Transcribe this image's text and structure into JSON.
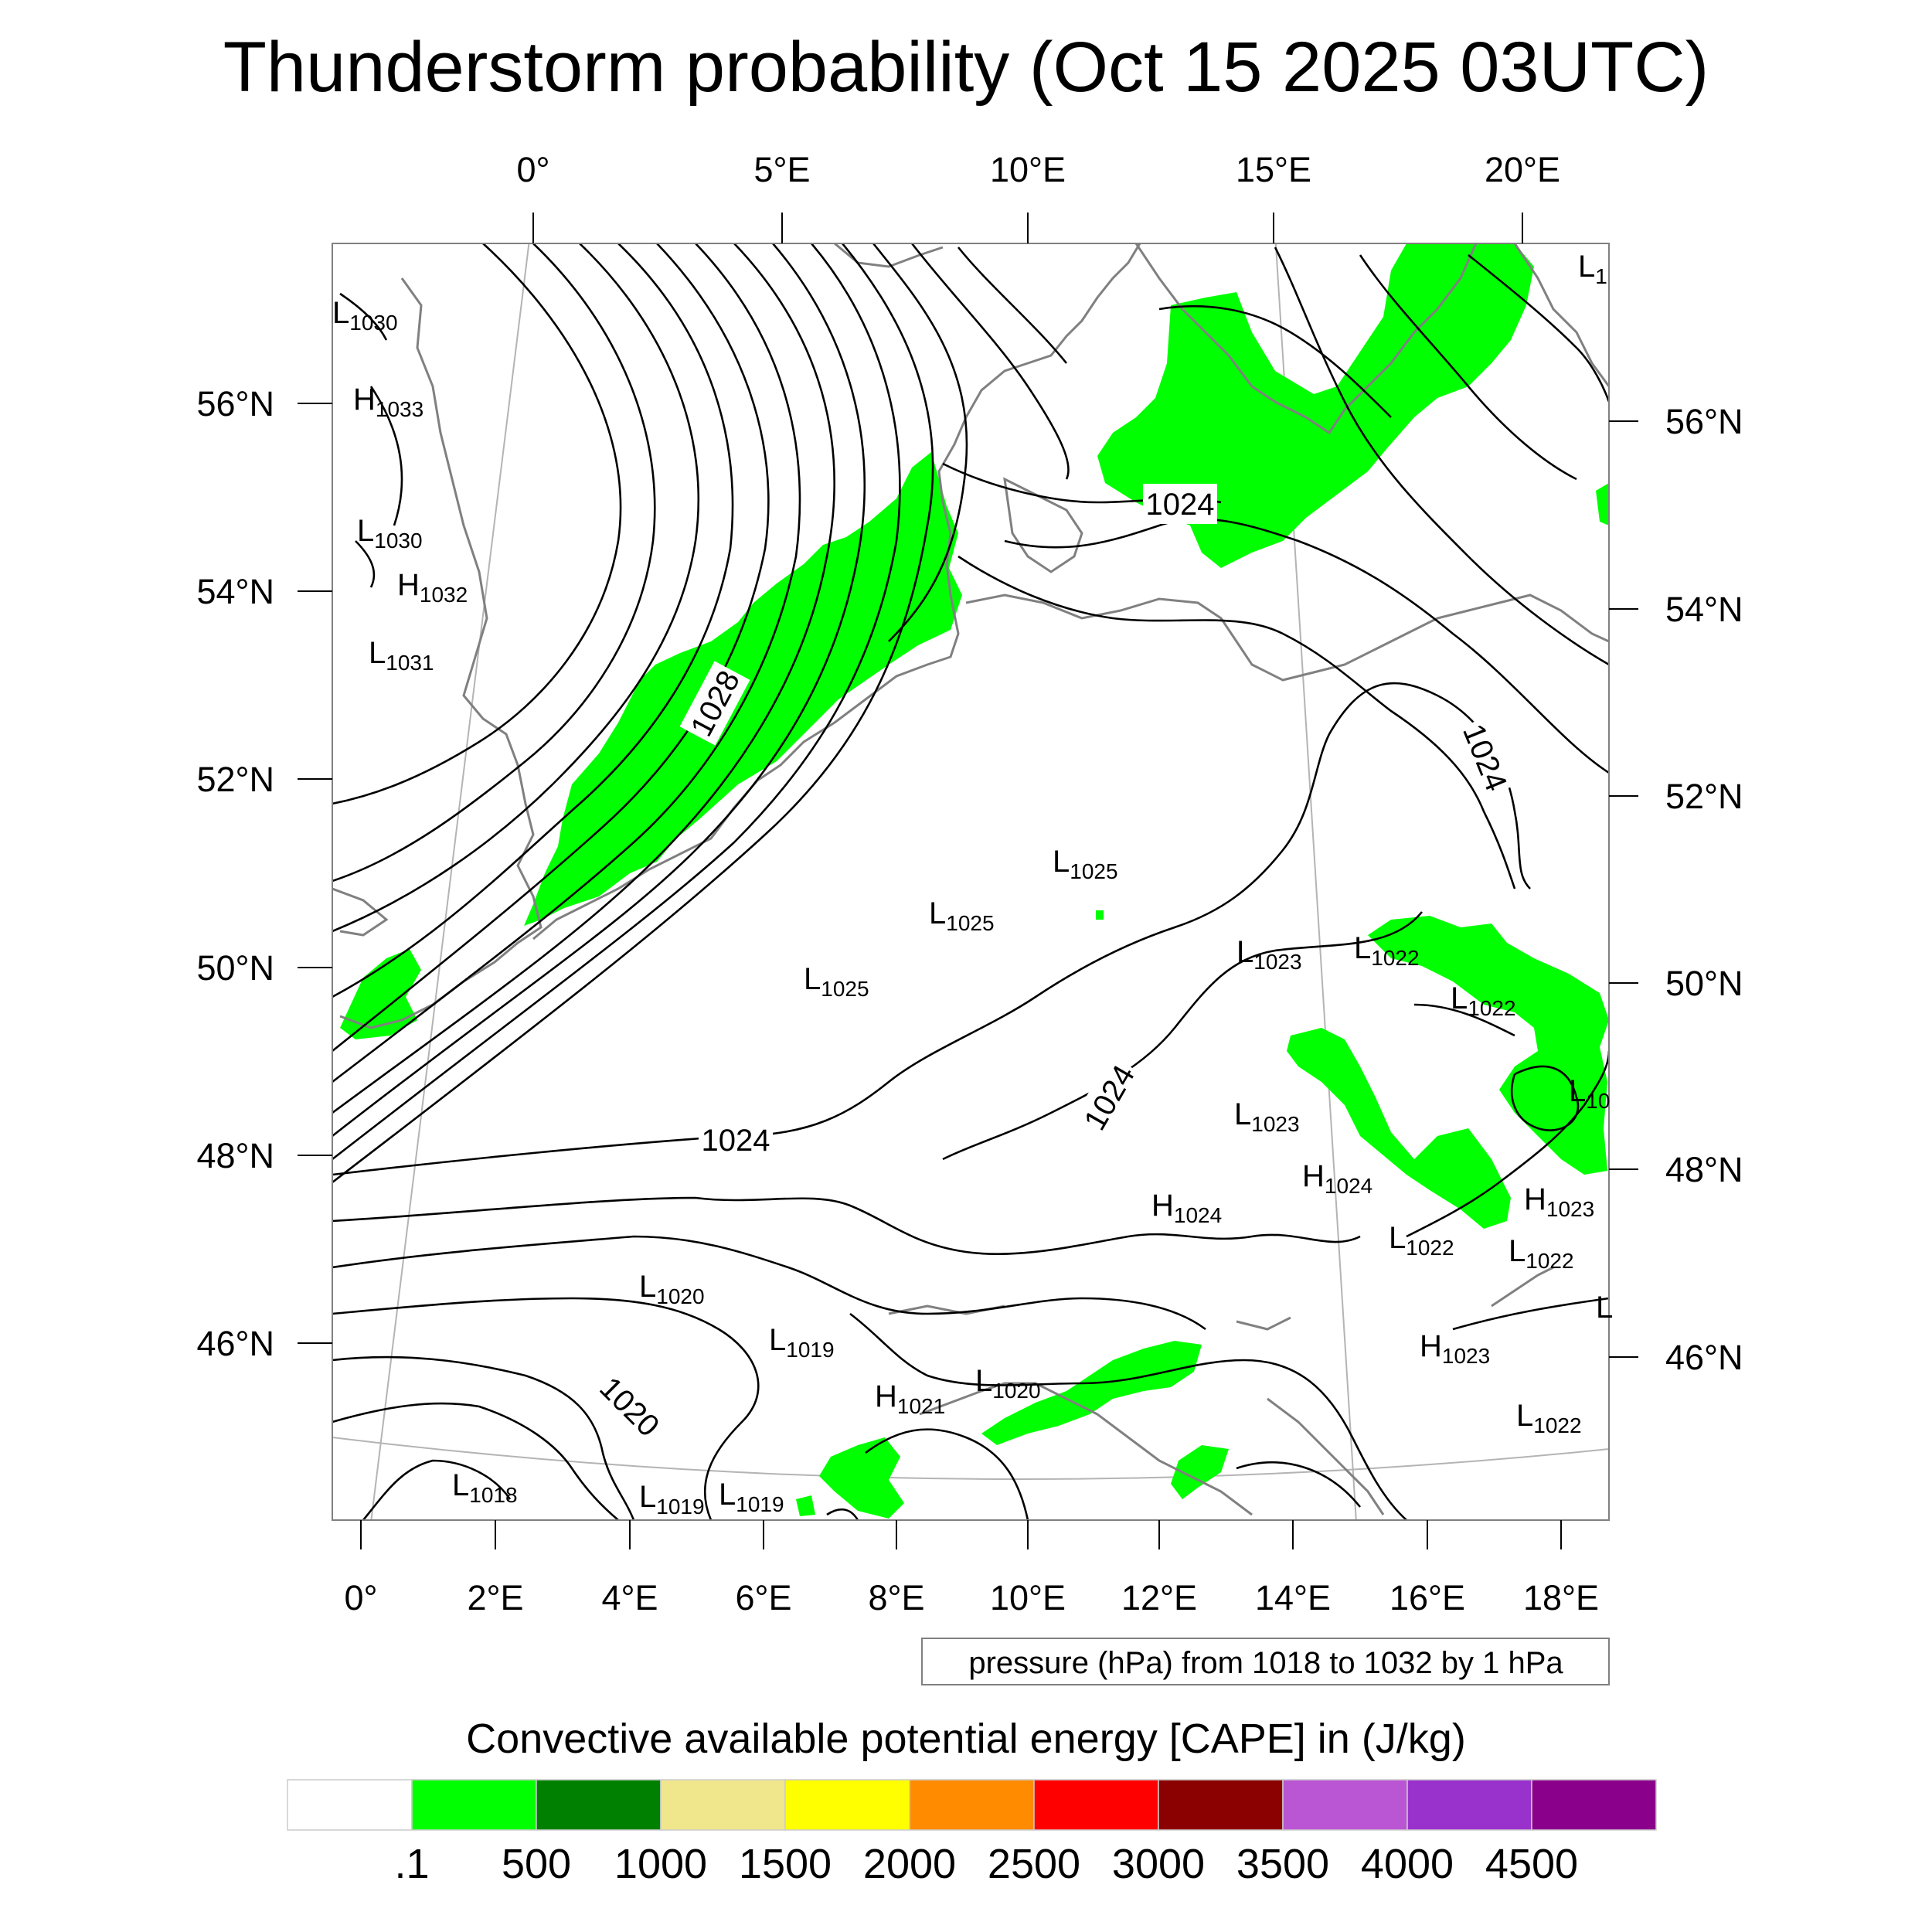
{
  "title": "Thunderstorm probability (Oct 15 2025 03UTC)",
  "top_axis_labels": [
    "0°",
    "5°E",
    "10°E",
    "15°E",
    "20°E"
  ],
  "bottom_axis_labels": [
    "0°",
    "2°E",
    "4°E",
    "6°E",
    "8°E",
    "10°E",
    "12°E",
    "14°E",
    "16°E",
    "18°E"
  ],
  "left_axis_labels": [
    "56°N",
    "54°N",
    "52°N",
    "50°N",
    "48°N",
    "46°N"
  ],
  "right_axis_labels": [
    "56°N",
    "54°N",
    "52°N",
    "50°N",
    "48°N",
    "46°N"
  ],
  "pressure_note": "pressure (hPa) from 1018 to 1032 by 1 hPa",
  "isobar_labels": [
    "1028",
    "1024",
    "1024",
    "1024",
    "1024",
    "1020"
  ],
  "pressure_centers": [
    {
      "type": "L",
      "value": "1030"
    },
    {
      "type": "H",
      "value": "1033"
    },
    {
      "type": "L",
      "value": "1030"
    },
    {
      "type": "H",
      "value": "1032"
    },
    {
      "type": "L",
      "value": "1031"
    },
    {
      "type": "L",
      "value": "1025"
    },
    {
      "type": "L",
      "value": "1025"
    },
    {
      "type": "L",
      "value": "1025"
    },
    {
      "type": "L",
      "value": "1023"
    },
    {
      "type": "L",
      "value": "1022"
    },
    {
      "type": "L",
      "value": "1022"
    },
    {
      "type": "L",
      "value": "1023"
    },
    {
      "type": "H",
      "value": "1024"
    },
    {
      "type": "H",
      "value": "1024"
    },
    {
      "type": "H",
      "value": "1023"
    },
    {
      "type": "L",
      "value": "1022"
    },
    {
      "type": "L",
      "value": "1022"
    },
    {
      "type": "L",
      "value": "1020"
    },
    {
      "type": "L",
      "value": "1019"
    },
    {
      "type": "H",
      "value": "1021"
    },
    {
      "type": "L",
      "value": "1020"
    },
    {
      "type": "H",
      "value": "1023"
    },
    {
      "type": "L",
      "value": "1022"
    },
    {
      "type": "L",
      "value": "1018"
    },
    {
      "type": "L",
      "value": "1019"
    },
    {
      "type": "L",
      "value": "1019"
    },
    {
      "type": "L",
      "value": "1"
    },
    {
      "type": "L",
      "value": "10"
    },
    {
      "type": "L",
      "value": ""
    }
  ],
  "colorbar": {
    "title": "Convective available potential energy [CAPE] in (J/kg)",
    "labels": [
      ".1",
      "500",
      "1000",
      "1500",
      "2000",
      "2500",
      "3000",
      "3500",
      "4000",
      "4500"
    ],
    "colors": [
      "#ffffff",
      "#00ff00",
      "#008000",
      "#f0e68c",
      "#ffff00",
      "#ff8c00",
      "#ff0000",
      "#8b0000",
      "#ba55d3",
      "#9932cc",
      "#8b008b"
    ]
  },
  "colors": {
    "cape_green": "#00ff00",
    "isobar": "#000000",
    "coastline": "#808080",
    "graticule": "#b4b4b4"
  }
}
